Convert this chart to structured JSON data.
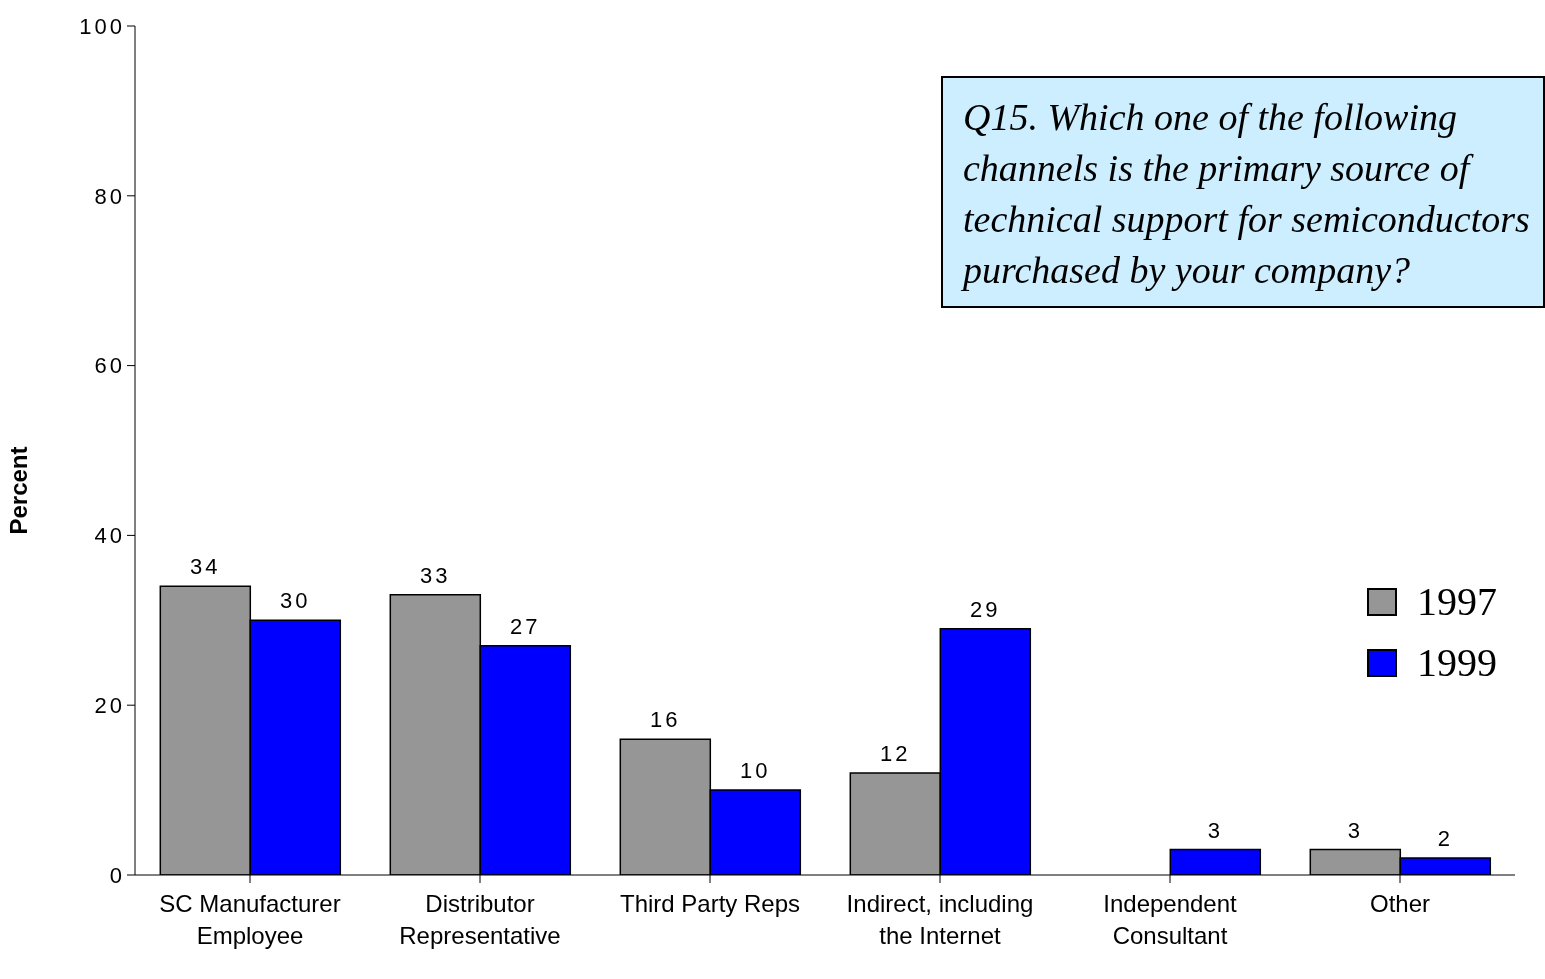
{
  "chart_data": {
    "type": "bar",
    "ylabel": "Percent",
    "categories": [
      "SC Manufacturer Employee",
      "Distributor Representative",
      "Third Party Reps",
      "Indirect, including the Internet",
      "Independent Consultant",
      "Other"
    ],
    "series": [
      {
        "name": "1997",
        "color": "#969696",
        "values": [
          34,
          33,
          16,
          12,
          null,
          3
        ]
      },
      {
        "name": "1999",
        "color": "#0000ff",
        "values": [
          30,
          27,
          10,
          29,
          3,
          2
        ]
      }
    ],
    "ylim": [
      0,
      100
    ],
    "yticks": [
      0,
      20,
      40,
      60,
      80,
      100
    ],
    "grid": false,
    "legend": "right",
    "data_labels": true,
    "annotations": [
      "Q15.  Which one of the following channels is the primary source of technical support for semiconductors purchased by your company?"
    ]
  }
}
